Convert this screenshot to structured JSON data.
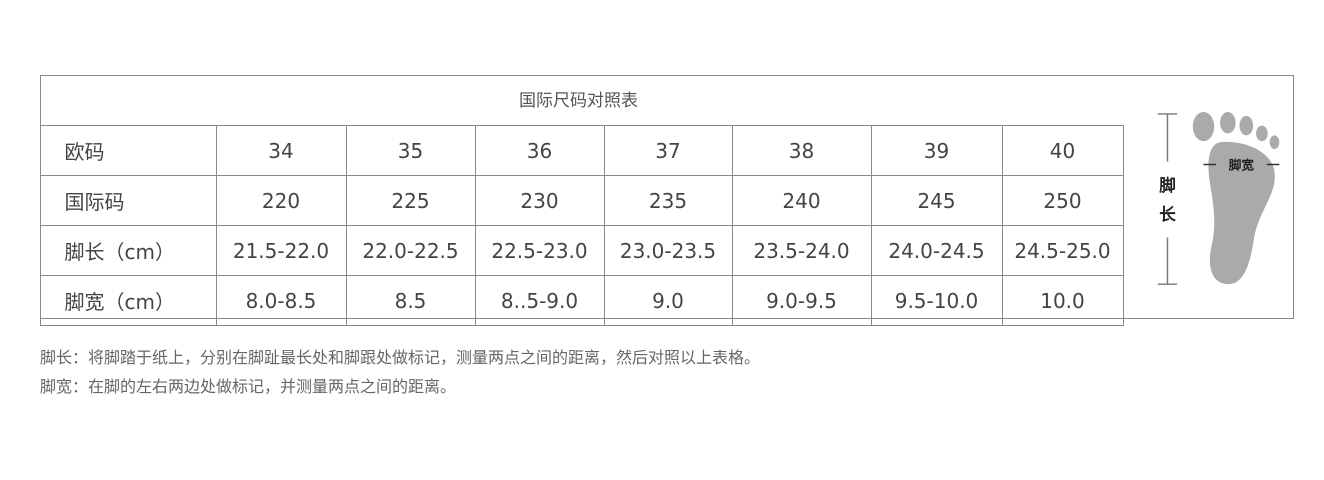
{
  "title": "国际尺码对照表",
  "rows": [
    {
      "label": "欧码",
      "values": [
        "34",
        "35",
        "36",
        "37",
        "38",
        "39",
        "40"
      ]
    },
    {
      "label": "国际码",
      "values": [
        "220",
        "225",
        "230",
        "235",
        "240",
        "245",
        "250"
      ]
    },
    {
      "label": "脚长（cm）",
      "values": [
        "21.5-22.0",
        "22.0-22.5",
        "22.5-23.0",
        "23.0-23.5",
        "23.5-24.0",
        "24.0-24.5",
        "24.5-25.0"
      ]
    },
    {
      "label": "脚宽（cm）",
      "values": [
        "8.0-8.5",
        "8.5",
        "8..5-9.0",
        "9.0",
        "9.0-9.5",
        "9.5-10.0",
        "10.0"
      ]
    }
  ],
  "diagram": {
    "length_label_1": "脚",
    "length_label_2": "长",
    "width_label": "脚宽"
  },
  "notes": [
    "脚长：将脚踏于纸上，分别在脚趾最长处和脚跟处做标记，测量两点之间的距离，然后对照以上表格。",
    "脚宽：在脚的左右两边处做标记，并测量两点之间的距离。"
  ]
}
